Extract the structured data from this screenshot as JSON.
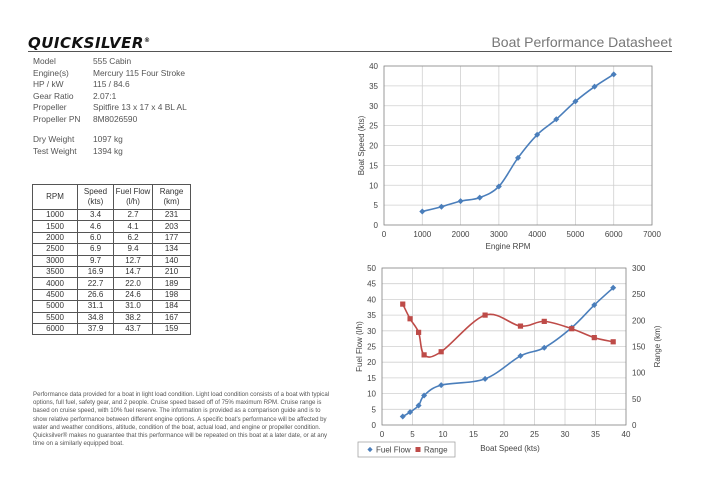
{
  "header": {
    "brand": "QUICKSILVER",
    "reg": "®",
    "title": "Boat Performance Datasheet"
  },
  "specs": [
    {
      "label": "Model",
      "value": "555 Cabin"
    },
    {
      "label": "Engine(s)",
      "value": "Mercury 115 Four Stroke"
    },
    {
      "label": "HP / kW",
      "value": "115 / 84.6"
    },
    {
      "label": "Gear Ratio",
      "value": "2.07:1"
    },
    {
      "label": "Propeller",
      "value": "Spitfire 13 x 17 x 4 BL AL"
    },
    {
      "label": "Propeller PN",
      "value": "8M8026590"
    }
  ],
  "weights": [
    {
      "label": "Dry Weight",
      "value": "1097 kg"
    },
    {
      "label": "Test Weight",
      "value": "1394 kg"
    }
  ],
  "table": {
    "headers": [
      [
        "RPM",
        ""
      ],
      [
        "Speed",
        "(kts)"
      ],
      [
        "Fuel Flow",
        "(l/h)"
      ],
      [
        "Range",
        "(km)"
      ]
    ],
    "rows": [
      [
        "1000",
        "3.4",
        "2.7",
        "231"
      ],
      [
        "1500",
        "4.6",
        "4.1",
        "203"
      ],
      [
        "2000",
        "6.0",
        "6.2",
        "177"
      ],
      [
        "2500",
        "6.9",
        "9.4",
        "134"
      ],
      [
        "3000",
        "9.7",
        "12.7",
        "140"
      ],
      [
        "3500",
        "16.9",
        "14.7",
        "210"
      ],
      [
        "4000",
        "22.7",
        "22.0",
        "189"
      ],
      [
        "4500",
        "26.6",
        "24.6",
        "198"
      ],
      [
        "5000",
        "31.1",
        "31.0",
        "184"
      ],
      [
        "5500",
        "34.8",
        "38.2",
        "167"
      ],
      [
        "6000",
        "37.9",
        "43.7",
        "159"
      ]
    ]
  },
  "notes": "Performance data provided for a boat in light load condition.  Light load condition consists of a boat with typical options, full fuel, safety gear, and 2 people.  Cruise speed based off of 75% maximum RPM.  Cruise range is based on cruise speed, with 10% fuel reserve. The information is provided as a comparison guide and is to show relative performance between different engine options.  A specific boat's performance will be affected by water and weather conditions, altitude, condition of the boat, actual load, and engine or propeller condition. Quicksilver® makes no guarantee that this performance will be repeated on this  boat at a later date, or at any time on a similarly equipped boat.",
  "chart_data": [
    {
      "type": "line",
      "title": "",
      "xlabel": "Engine RPM",
      "ylabel": "Boat Speed (kts)",
      "xlim": [
        0,
        7000
      ],
      "ylim": [
        0,
        40
      ],
      "xticks": [
        0,
        1000,
        2000,
        3000,
        4000,
        5000,
        6000,
        7000
      ],
      "yticks": [
        0,
        5,
        10,
        15,
        20,
        25,
        30,
        35,
        40
      ],
      "grid": true,
      "series": [
        {
          "x": [
            1000,
            1500,
            2000,
            2500,
            3000,
            3500,
            4000,
            4500,
            5000,
            5500,
            6000
          ],
          "y": [
            3.4,
            4.6,
            6.0,
            6.9,
            9.7,
            16.9,
            22.7,
            26.6,
            31.1,
            34.8,
            37.9
          ],
          "color": "#4a7ebb"
        }
      ]
    },
    {
      "type": "scatter",
      "title": "",
      "xlabel": "Boat Speed  (kts)",
      "ylabel": "Fuel Flow  (l/h)",
      "y2label": "Range (km)",
      "xlim": [
        0,
        40
      ],
      "ylim": [
        0,
        50
      ],
      "y2lim": [
        0,
        300
      ],
      "xticks": [
        0,
        5,
        10,
        15,
        20,
        25,
        30,
        35,
        40
      ],
      "yticks": [
        0,
        5,
        10,
        15,
        20,
        25,
        30,
        35,
        40,
        45,
        50
      ],
      "y2ticks": [
        0,
        50,
        100,
        150,
        200,
        250,
        300
      ],
      "grid": true,
      "legend_position": "bottom-left",
      "series": [
        {
          "name": "Fuel Flow",
          "axis": "left",
          "color": "#4a7ebb",
          "marker": "diamond",
          "x": [
            3.4,
            4.6,
            6.0,
            6.9,
            9.7,
            16.9,
            22.7,
            26.6,
            31.1,
            34.8,
            37.9
          ],
          "y": [
            2.7,
            4.1,
            6.2,
            9.4,
            12.7,
            14.7,
            22.0,
            24.6,
            31.0,
            38.2,
            43.7
          ]
        },
        {
          "name": "Range",
          "axis": "right",
          "color": "#be4b48",
          "marker": "square",
          "x": [
            3.4,
            4.6,
            6.0,
            6.9,
            9.7,
            16.9,
            22.7,
            26.6,
            31.1,
            34.8,
            37.9
          ],
          "y": [
            231,
            203,
            177,
            134,
            140,
            210,
            189,
            198,
            184,
            167,
            159
          ]
        }
      ]
    }
  ]
}
